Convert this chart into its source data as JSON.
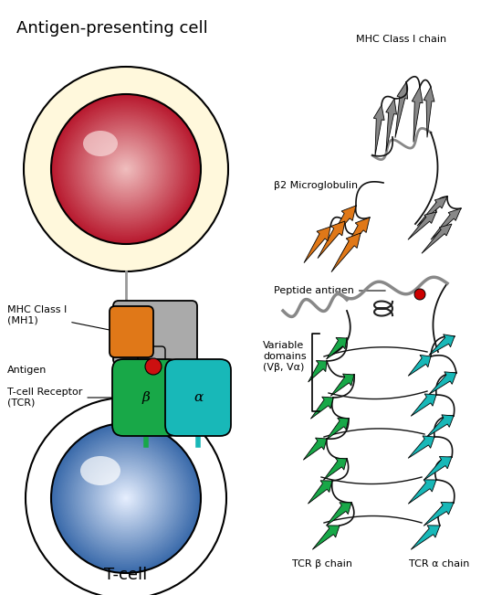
{
  "title": "Antigen-presenting cell",
  "tcell_label": "T-cell",
  "labels": {
    "mhc_class_i": "MHC Class I\n(MH1)",
    "antigen": "Antigen",
    "tcr": "T-cell Receptor\n(TCR)",
    "beta": "β",
    "alpha": "α",
    "mhc_chain": "MHC Class I chain",
    "b2m": "β2 Microglobulin",
    "peptide_antigen": "Peptide antigen",
    "variable_domains": "Variable\ndomains\n(Vβ, Vα)",
    "tcr_beta": "TCR β chain",
    "tcr_alpha": "TCR α chain"
  },
  "colors": {
    "apc_outer": "#FFF8DC",
    "apc_inner": "#B8192E",
    "tcell_outer": "#FFFFFF",
    "tcell_inner_top": "#6090C8",
    "tcell_inner_bot": "#3060A0",
    "mhc_body": "#AAAAAA",
    "mhc_orange": "#E07818",
    "antigen_dot": "#CC1010",
    "tcr_beta_color": "#18A848",
    "tcr_alpha_color": "#18B8B8",
    "connector": "#999999",
    "background": "#FFFFFF",
    "text": "#000000",
    "gray_ribbon": "#888888",
    "black_loop": "#111111"
  }
}
